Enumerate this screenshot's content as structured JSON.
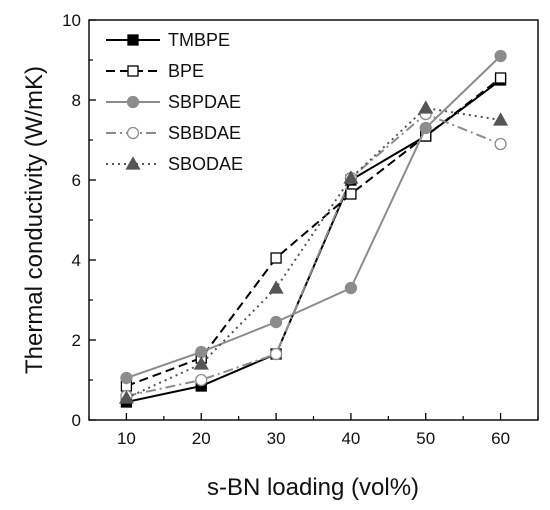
{
  "chart_data": {
    "type": "line",
    "xlabel": "s-BN loading (vol%)",
    "ylabel": "Thermal conductivity (W/mK)",
    "xlim": [
      5,
      65
    ],
    "ylim": [
      0,
      10
    ],
    "x": [
      10,
      20,
      30,
      40,
      50,
      60
    ],
    "xticks": [
      "10",
      "20",
      "30",
      "40",
      "50",
      "60"
    ],
    "yticks": [
      "0",
      "2",
      "4",
      "6",
      "8",
      "10"
    ],
    "legend_position": "top-left",
    "grid": false,
    "series": [
      {
        "name": "TMBPE",
        "values": [
          0.45,
          0.85,
          1.65,
          6.0,
          7.1,
          8.5
        ],
        "color": "#000000",
        "dash": "solid",
        "marker": "square",
        "filled": true
      },
      {
        "name": "BPE",
        "values": [
          0.85,
          1.55,
          4.05,
          5.65,
          7.1,
          8.55
        ],
        "color": "#000000",
        "dash": "dashed",
        "marker": "square",
        "filled": false
      },
      {
        "name": "SBPDAE",
        "values": [
          1.05,
          1.7,
          2.45,
          3.3,
          7.3,
          9.1
        ],
        "color": "#8c8c8c",
        "dash": "solid",
        "marker": "circle",
        "filled": true
      },
      {
        "name": "SBBDAE",
        "values": [
          0.6,
          1.0,
          1.65,
          6.05,
          7.65,
          6.9
        ],
        "color": "#8c8c8c",
        "dash": "dashdot",
        "marker": "circle",
        "filled": false
      },
      {
        "name": "SBODAE",
        "values": [
          0.55,
          1.4,
          3.3,
          6.05,
          7.8,
          7.5
        ],
        "color": "#555555",
        "dash": "dotted",
        "marker": "triangle",
        "filled": true
      }
    ]
  }
}
